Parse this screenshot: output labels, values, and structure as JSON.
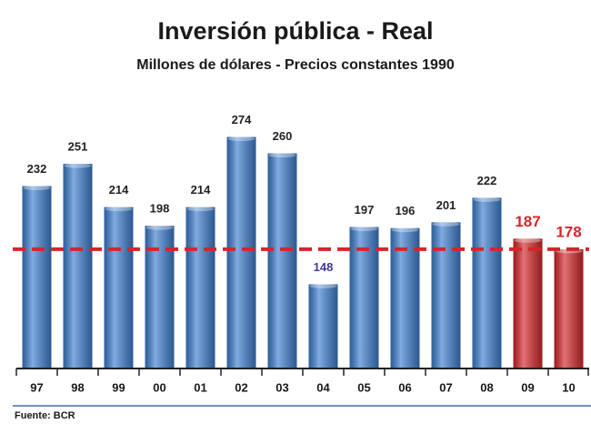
{
  "chart_data": {
    "type": "bar",
    "title": "Inversión pública - Real",
    "subtitle": "Millones de dólares -  Precios constantes 1990",
    "source": "Fuente: BCR",
    "categories": [
      "97",
      "98",
      "99",
      "00",
      "01",
      "02",
      "03",
      "04",
      "05",
      "06",
      "07",
      "08",
      "09",
      "10"
    ],
    "values": [
      232,
      251,
      214,
      198,
      214,
      274,
      260,
      148,
      197,
      196,
      201,
      222,
      187,
      178
    ],
    "colors": [
      "#3d7fd0",
      "#3d7fd0",
      "#3d7fd0",
      "#3d7fd0",
      "#3d7fd0",
      "#3d7fd0",
      "#3d7fd0",
      "#3d7fd0",
      "#3d7fd0",
      "#3d7fd0",
      "#3d7fd0",
      "#3d7fd0",
      "#d4262a",
      "#d4262a"
    ],
    "label_colors": [
      "#222222",
      "#222222",
      "#222222",
      "#222222",
      "#222222",
      "#222222",
      "#222222",
      "#3b3b9a",
      "#222222",
      "#222222",
      "#222222",
      "#222222",
      "#d4262a",
      "#d4262a"
    ],
    "reference_line": {
      "value": 178,
      "color": "#d4262a"
    },
    "ylim": [
      76,
      290
    ]
  }
}
